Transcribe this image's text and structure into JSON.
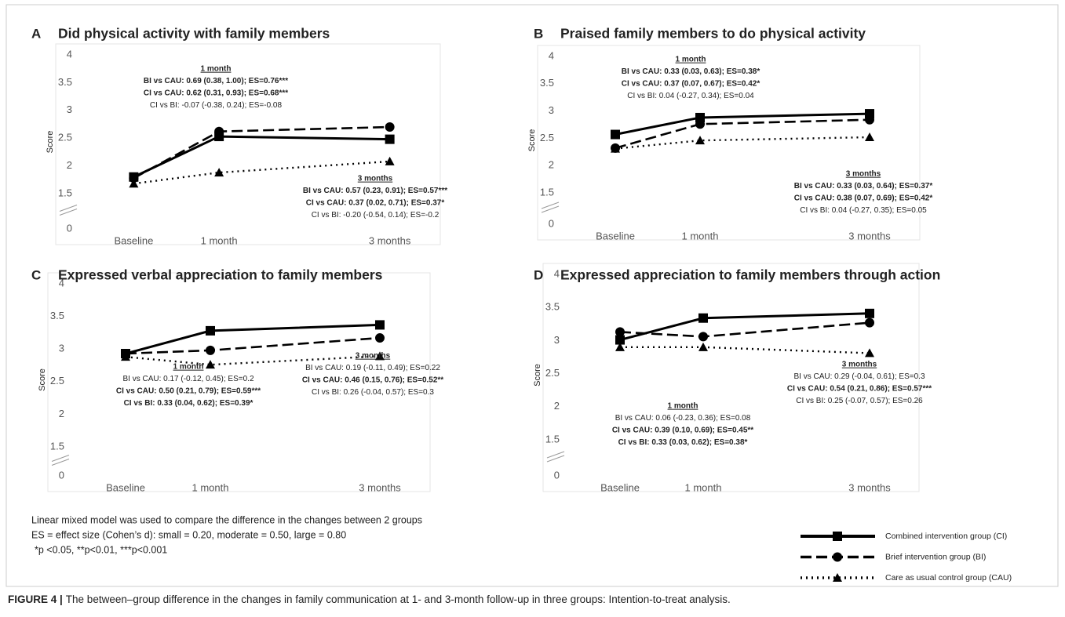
{
  "chart_data": [
    {
      "type": "line",
      "panel": "A",
      "title": "Did physical activity with family members",
      "y_label": "Score",
      "x": [
        0,
        1,
        3
      ],
      "xlim": [
        -0.5,
        3.5
      ],
      "xticks": [
        {
          "value": 0,
          "label": "Baseline"
        },
        {
          "value": 1,
          "label": "1 month"
        },
        {
          "value": 3,
          "label": "3 months"
        }
      ],
      "ylim": [
        0,
        4
      ],
      "yticks": [
        0,
        1.5,
        2,
        2.5,
        3,
        3.5,
        4
      ],
      "axis_break": true,
      "series": [
        {
          "values": [
            1.8,
            2.53,
            2.48
          ]
        },
        {
          "values": [
            1.78,
            2.62,
            2.7
          ]
        },
        {
          "values": [
            1.68,
            1.88,
            2.08
          ]
        }
      ],
      "annotations": [
        {
          "heading": "1 month",
          "lines": [
            "BI vs CAU: 0.69 (0.38, 1.00); ES=0.76***",
            "CI vs CAU: 0.62 (0.31, 0.93); ES=0.68***",
            "CI vs BI: -0.07 (-0.38, 0.24); ES=-0.08"
          ],
          "bold": [
            true,
            true,
            false
          ]
        },
        {
          "heading": "3 months",
          "lines": [
            "BI vs CAU: 0.57 (0.23, 0.91); ES=0.57***",
            "CI vs CAU: 0.37 (0.02, 0.71); ES=0.37*",
            "CI vs BI: -0.20 (-0.54, 0.14); ES=-0.2"
          ],
          "bold": [
            true,
            true,
            false
          ]
        }
      ]
    },
    {
      "type": "line",
      "panel": "B",
      "title": "Praised family members to do physical activity",
      "y_label": "Score",
      "x": [
        0,
        1,
        3
      ],
      "xlim": [
        -0.5,
        3.5
      ],
      "xticks": [
        {
          "value": 0,
          "label": "Baseline"
        },
        {
          "value": 1,
          "label": "1 month"
        },
        {
          "value": 3,
          "label": "3 months"
        }
      ],
      "ylim": [
        0,
        4
      ],
      "yticks": [
        0,
        1.5,
        2,
        2.5,
        3,
        3.5,
        4
      ],
      "axis_break": true,
      "series": [
        {
          "values": [
            2.57,
            2.88,
            2.95
          ]
        },
        {
          "values": [
            2.32,
            2.76,
            2.84
          ]
        },
        {
          "values": [
            2.31,
            2.46,
            2.52
          ]
        }
      ],
      "annotations": [
        {
          "heading": "1 month",
          "lines": [
            "BI vs CAU: 0.33 (0.03, 0.63); ES=0.38*",
            "CI vs CAU: 0.37 (0.07, 0.67); ES=0.42*",
            "CI vs BI: 0.04 (-0.27, 0.34); ES=0.04"
          ],
          "bold": [
            true,
            true,
            false
          ]
        },
        {
          "heading": "3 months",
          "lines": [
            "BI vs CAU: 0.33 (0.03, 0.64); ES=0.37*",
            "CI vs CAU: 0.38 (0.07, 0.69); ES=0.42*",
            "CI vs BI: 0.04 (-0.27, 0.35); ES=0.05"
          ],
          "bold": [
            true,
            true,
            false
          ]
        }
      ]
    },
    {
      "type": "line",
      "panel": "C",
      "title": "Expressed verbal appreciation to family members",
      "y_label": "Score",
      "x": [
        0,
        1,
        3
      ],
      "xlim": [
        -0.5,
        3.5
      ],
      "xticks": [
        {
          "value": 0,
          "label": "Baseline"
        },
        {
          "value": 1,
          "label": "1 month"
        },
        {
          "value": 3,
          "label": "3 months"
        }
      ],
      "ylim": [
        0,
        4
      ],
      "yticks": [
        0,
        1.5,
        2,
        2.5,
        3,
        3.5,
        4
      ],
      "axis_break": true,
      "series": [
        {
          "values": [
            2.93,
            3.28,
            3.37
          ]
        },
        {
          "values": [
            2.93,
            2.98,
            3.17
          ]
        },
        {
          "values": [
            2.88,
            2.76,
            2.89
          ]
        }
      ],
      "annotations": [
        {
          "heading": "1 month",
          "lines": [
            "BI vs CAU: 0.17 (-0.12, 0.45); ES=0.2",
            "CI vs CAU: 0.50 (0.21, 0.79); ES=0.59***",
            "CI vs BI: 0.33 (0.04, 0.62); ES=0.39*"
          ],
          "bold": [
            false,
            true,
            true
          ]
        },
        {
          "heading": "3 months",
          "lines": [
            "BI vs CAU: 0.19 (-0.11, 0.49); ES=0.22",
            "CI vs CAU: 0.46 (0.15, 0.76); ES=0.52**",
            "CI vs BI: 0.26 (-0.04, 0.57); ES=0.3"
          ],
          "bold": [
            false,
            true,
            false
          ]
        }
      ]
    },
    {
      "type": "line",
      "panel": "D",
      "title": "Expressed appreciation to family members through action",
      "y_label": "Score",
      "x": [
        0,
        1,
        3
      ],
      "xlim": [
        -0.5,
        3.5
      ],
      "xticks": [
        {
          "value": 0,
          "label": "Baseline"
        },
        {
          "value": 1,
          "label": "1 month"
        },
        {
          "value": 3,
          "label": "3 months"
        }
      ],
      "ylim": [
        0,
        4
      ],
      "yticks": [
        0,
        1.5,
        2,
        2.5,
        3,
        3.5,
        4
      ],
      "axis_break": true,
      "series": [
        {
          "values": [
            3.01,
            3.34,
            3.41
          ]
        },
        {
          "values": [
            3.13,
            3.06,
            3.27
          ]
        },
        {
          "values": [
            2.9,
            2.9,
            2.81
          ]
        }
      ],
      "annotations": [
        {
          "heading": "1 month",
          "lines": [
            "BI vs CAU: 0.06 (-0.23, 0.36); ES=0.08",
            "CI vs CAU: 0.39 (0.10, 0.69); ES=0.45**",
            "CI vs BI: 0.33 (0.03, 0.62); ES=0.38*"
          ],
          "bold": [
            false,
            true,
            true
          ]
        },
        {
          "heading": "3 months",
          "lines": [
            "BI vs CAU: 0.29 (-0.04, 0.61); ES=0.3",
            "CI vs CAU: 0.54 (0.21, 0.86); ES=0.57***",
            "CI vs BI: 0.25 (-0.07, 0.57); ES=0.26"
          ],
          "bold": [
            false,
            true,
            false
          ]
        }
      ]
    }
  ],
  "legend": [
    {
      "name": "Combined intervention group (CI)",
      "color": "#000000",
      "style": "solid",
      "marker": "square"
    },
    {
      "name": "Brief intervention group (BI)",
      "color": "#000000",
      "style": "dashed",
      "marker": "circle"
    },
    {
      "name": "Care as usual control group (CAU)",
      "color": "#000000",
      "style": "dotted",
      "marker": "triangle"
    }
  ],
  "footnotes": [
    "Linear mixed model was used to compare the difference in the changes between 2 groups",
    "ES = effect size (Cohen’s d): small = 0.20, moderate = 0.50, large = 0.80",
    "*p <0.05, **p<0.01, ***p<0.001"
  ],
  "caption": {
    "label": "FIGURE 4 |",
    "text": "The between–group difference in the changes in family communication at 1- and 3-month follow-up in three groups: Intention-to-treat analysis."
  }
}
